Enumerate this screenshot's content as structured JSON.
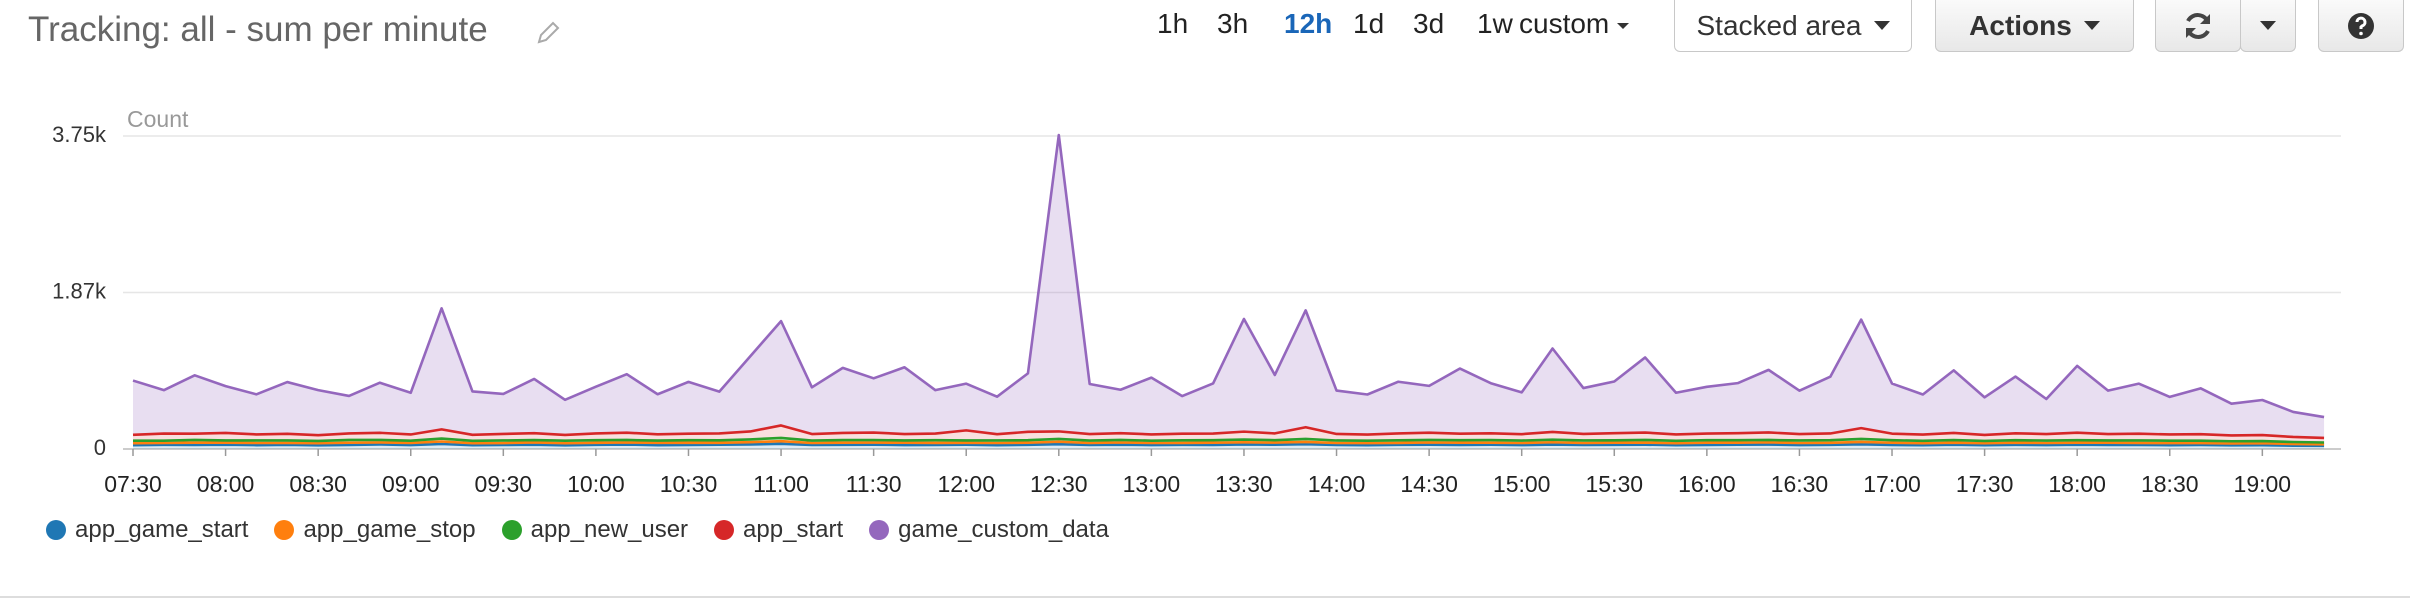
{
  "header": {
    "title": "Tracking: all - sum per minute",
    "ranges": [
      "1h",
      "3h",
      "12h",
      "1d",
      "3d",
      "1w"
    ],
    "active_range": "12h",
    "custom": "custom",
    "view": "Stacked area",
    "actions": "Actions"
  },
  "chart_data": {
    "type": "area",
    "stacked": true,
    "ylabel": "Count",
    "ylim": [
      0,
      3750
    ],
    "yticks": [
      0,
      {
        "value": 1875,
        "label": "1.87k"
      },
      {
        "value": 3750,
        "label": "3.75k"
      }
    ],
    "grid": true,
    "legend": "bottom",
    "categories": [
      "07:30",
      null,
      null,
      "08:00",
      null,
      null,
      "08:30",
      null,
      null,
      "09:00",
      null,
      null,
      "09:30",
      null,
      null,
      "10:00",
      null,
      null,
      "10:30",
      null,
      null,
      "11:00",
      null,
      null,
      "11:30",
      null,
      null,
      "12:00",
      null,
      null,
      "12:30",
      null,
      null,
      "13:00",
      null,
      null,
      "13:30",
      null,
      null,
      "14:00",
      null,
      null,
      "14:30",
      null,
      null,
      "15:00",
      null,
      null,
      "15:30",
      null,
      null,
      "16:00",
      null,
      null,
      "16:30",
      null,
      null,
      "17:00",
      null,
      null,
      "17:30",
      null,
      null,
      "18:00",
      null,
      null,
      "18:30",
      null,
      null,
      "19:00",
      null,
      null
    ],
    "series": [
      {
        "name": "app_game_start",
        "color": "#1f77b4",
        "values": [
          45,
          50,
          48,
          52,
          46,
          50,
          44,
          48,
          55,
          47,
          60,
          45,
          48,
          52,
          44,
          50,
          53,
          46,
          49,
          51,
          55,
          62,
          48,
          50,
          52,
          47,
          49,
          51,
          46,
          50,
          58,
          48,
          52,
          47,
          50,
          49,
          55,
          51,
          57,
          48,
          46,
          50,
          52,
          49,
          51,
          47,
          53,
          48,
          50,
          52,
          46,
          49,
          51,
          53,
          47,
          50,
          56,
          49,
          46,
          51,
          45,
          50,
          47,
          52,
          48,
          49,
          46,
          48,
          44,
          45,
          40,
          38
        ]
      },
      {
        "name": "app_game_stop",
        "color": "#ff7f0e",
        "values": [
          25,
          22,
          28,
          24,
          26,
          23,
          25,
          27,
          24,
          26,
          30,
          24,
          23,
          27,
          25,
          24,
          26,
          28,
          25,
          23,
          27,
          32,
          24,
          26,
          25,
          28,
          24,
          23,
          26,
          25,
          29,
          24,
          26,
          25,
          23,
          27,
          25,
          26,
          28,
          24,
          25,
          23,
          27,
          26,
          24,
          25,
          28,
          24,
          26,
          25,
          23,
          26,
          24,
          27,
          25,
          24,
          29,
          26,
          23,
          25,
          24,
          26,
          25,
          23,
          27,
          24,
          25,
          23,
          22,
          24,
          20,
          18
        ]
      },
      {
        "name": "app_new_user",
        "color": "#2ca02c",
        "values": [
          30,
          28,
          32,
          27,
          31,
          29,
          28,
          33,
          30,
          27,
          35,
          29,
          31,
          28,
          30,
          32,
          29,
          27,
          31,
          30,
          33,
          38,
          29,
          31,
          30,
          28,
          32,
          29,
          30,
          31,
          34,
          29,
          30,
          28,
          31,
          30,
          33,
          29,
          36,
          30,
          28,
          31,
          29,
          30,
          32,
          29,
          31,
          30,
          28,
          32,
          29,
          31,
          30,
          28,
          30,
          32,
          35,
          30,
          29,
          31,
          28,
          30,
          29,
          31,
          28,
          30,
          29,
          28,
          27,
          26,
          24,
          22
        ]
      },
      {
        "name": "app_start",
        "color": "#d62728",
        "values": [
          70,
          85,
          75,
          90,
          72,
          80,
          68,
          78,
          85,
          74,
          110,
          72,
          78,
          82,
          70,
          80,
          88,
          75,
          79,
          83,
          95,
          150,
          78,
          85,
          90,
          76,
          80,
          120,
          75,
          100,
          90,
          78,
          82,
          75,
          80,
          79,
          95,
          81,
          140,
          78,
          74,
          82,
          88,
          79,
          81,
          77,
          92,
          78,
          85,
          88,
          76,
          79,
          84,
          90,
          77,
          80,
          130,
          79,
          75,
          85,
          72,
          82,
          78,
          90,
          76,
          80,
          74,
          78,
          70,
          72,
          60,
          55
        ]
      },
      {
        "name": "game_custom_data",
        "color": "#9467bd",
        "values": [
          650,
          520,
          700,
          560,
          480,
          620,
          540,
          450,
          600,
          500,
          1450,
          520,
          480,
          650,
          420,
          560,
          700,
          480,
          620,
          500,
          900,
          1250,
          560,
          780,
          650,
          800,
          520,
          560,
          450,
          700,
          3550,
          600,
          520,
          680,
          450,
          600,
          1350,
          700,
          1400,
          520,
          480,
          620,
          560,
          780,
          600,
          500,
          1000,
          550,
          620,
          900,
          500,
          560,
          600,
          750,
          520,
          680,
          1300,
          600,
          480,
          750,
          450,
          680,
          420,
          800,
          520,
          600,
          450,
          550,
          380,
          420,
          300,
          250
        ]
      }
    ]
  }
}
